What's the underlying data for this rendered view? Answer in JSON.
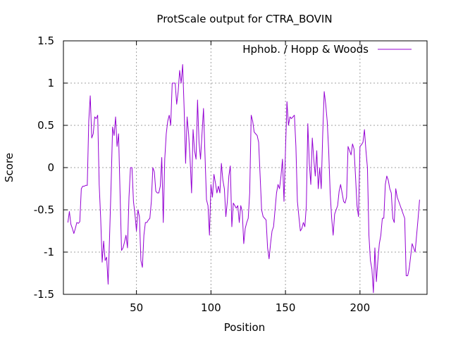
{
  "chart_data": {
    "type": "line",
    "title": "ProtScale output for CTRA_BOVIN",
    "xlabel": "Position",
    "ylabel": "Score",
    "xlim": [
      1,
      245
    ],
    "ylim": [
      -1.5,
      1.5
    ],
    "xticks": [
      50,
      100,
      150,
      200
    ],
    "xtick_labels": [
      "50",
      "100",
      "150",
      "200"
    ],
    "yticks": [
      -1.5,
      -1,
      -0.5,
      0,
      0.5,
      1,
      1.5
    ],
    "ytick_labels": [
      "-1.5",
      "-1",
      "-0.5",
      "0",
      "0.5",
      "1",
      "1.5"
    ],
    "grid": true,
    "legend_position": "top-right",
    "series": [
      {
        "name": "Hphob. / Hopp & Woods",
        "color": "#9400d3",
        "points": [
          [
            4,
            -0.65
          ],
          [
            5,
            -0.52
          ],
          [
            6,
            -0.67
          ],
          [
            7,
            -0.72
          ],
          [
            8,
            -0.78
          ],
          [
            9,
            -0.72
          ],
          [
            10,
            -0.65
          ],
          [
            11,
            -0.66
          ],
          [
            12,
            -0.64
          ],
          [
            13,
            -0.25
          ],
          [
            14,
            -0.22
          ],
          [
            15,
            -0.22
          ],
          [
            16,
            -0.21
          ],
          [
            17,
            -0.21
          ],
          [
            18,
            0.55
          ],
          [
            19,
            0.85
          ],
          [
            20,
            0.35
          ],
          [
            21,
            0.4
          ],
          [
            22,
            0.6
          ],
          [
            23,
            0.58
          ],
          [
            24,
            0.62
          ],
          [
            25,
            -0.2
          ],
          [
            26,
            -0.6
          ],
          [
            27,
            -1.12
          ],
          [
            28,
            -0.87
          ],
          [
            29,
            -1.1
          ],
          [
            30,
            -1.06
          ],
          [
            31,
            -1.38
          ],
          [
            32,
            -0.8
          ],
          [
            33,
            -0.2
          ],
          [
            34,
            0.48
          ],
          [
            35,
            0.38
          ],
          [
            36,
            0.6
          ],
          [
            37,
            0.25
          ],
          [
            38,
            0.4
          ],
          [
            39,
            -0.3
          ],
          [
            40,
            -0.98
          ],
          [
            41,
            -0.95
          ],
          [
            42,
            -0.88
          ],
          [
            43,
            -0.8
          ],
          [
            44,
            -0.95
          ],
          [
            45,
            -0.35
          ],
          [
            46,
            0.0
          ],
          [
            47,
            0.0
          ],
          [
            48,
            -0.4
          ],
          [
            49,
            -0.55
          ],
          [
            50,
            -0.75
          ],
          [
            51,
            -0.5
          ],
          [
            52,
            -0.58
          ],
          [
            53,
            -1.1
          ],
          [
            54,
            -1.18
          ],
          [
            55,
            -0.8
          ],
          [
            56,
            -0.65
          ],
          [
            57,
            -0.65
          ],
          [
            58,
            -0.62
          ],
          [
            59,
            -0.6
          ],
          [
            60,
            -0.4
          ],
          [
            61,
            0.0
          ],
          [
            62,
            -0.05
          ],
          [
            63,
            -0.28
          ],
          [
            64,
            -0.3
          ],
          [
            65,
            -0.3
          ],
          [
            66,
            -0.22
          ],
          [
            67,
            0.12
          ],
          [
            68,
            -0.65
          ],
          [
            69,
            0.1
          ],
          [
            70,
            0.4
          ],
          [
            71,
            0.55
          ],
          [
            72,
            0.62
          ],
          [
            73,
            0.5
          ],
          [
            74,
            1.0
          ],
          [
            75,
            1.0
          ],
          [
            76,
            1.0
          ],
          [
            77,
            0.75
          ],
          [
            78,
            0.9
          ],
          [
            79,
            1.15
          ],
          [
            80,
            1.0
          ],
          [
            81,
            1.22
          ],
          [
            82,
            0.7
          ],
          [
            83,
            0.05
          ],
          [
            84,
            0.6
          ],
          [
            85,
            0.4
          ],
          [
            86,
            0.1
          ],
          [
            87,
            -0.3
          ],
          [
            88,
            0.45
          ],
          [
            89,
            0.2
          ],
          [
            90,
            0.1
          ],
          [
            91,
            0.8
          ],
          [
            92,
            0.3
          ],
          [
            93,
            0.1
          ],
          [
            94,
            0.4
          ],
          [
            95,
            0.7
          ],
          [
            96,
            0.15
          ],
          [
            97,
            -0.38
          ],
          [
            98,
            -0.45
          ],
          [
            99,
            -0.8
          ],
          [
            100,
            -0.2
          ],
          [
            101,
            -0.35
          ],
          [
            102,
            -0.08
          ],
          [
            103,
            -0.18
          ],
          [
            104,
            -0.3
          ],
          [
            105,
            -0.22
          ],
          [
            106,
            -0.3
          ],
          [
            107,
            0.05
          ],
          [
            108,
            -0.15
          ],
          [
            109,
            -0.25
          ],
          [
            110,
            -0.58
          ],
          [
            111,
            -0.4
          ],
          [
            112,
            -0.1
          ],
          [
            113,
            0.02
          ],
          [
            114,
            -0.7
          ],
          [
            115,
            -0.42
          ],
          [
            116,
            -0.45
          ],
          [
            117,
            -0.48
          ],
          [
            118,
            -0.45
          ],
          [
            119,
            -0.65
          ],
          [
            120,
            -0.45
          ],
          [
            121,
            -0.52
          ],
          [
            122,
            -0.9
          ],
          [
            123,
            -0.72
          ],
          [
            124,
            -0.65
          ],
          [
            125,
            -0.6
          ],
          [
            126,
            -0.3
          ],
          [
            127,
            0.62
          ],
          [
            128,
            0.55
          ],
          [
            129,
            0.42
          ],
          [
            130,
            0.4
          ],
          [
            131,
            0.38
          ],
          [
            132,
            0.3
          ],
          [
            133,
            -0.1
          ],
          [
            134,
            -0.5
          ],
          [
            135,
            -0.58
          ],
          [
            136,
            -0.6
          ],
          [
            137,
            -0.62
          ],
          [
            138,
            -0.95
          ],
          [
            139,
            -1.08
          ],
          [
            140,
            -0.9
          ],
          [
            141,
            -0.75
          ],
          [
            142,
            -0.7
          ],
          [
            143,
            -0.5
          ],
          [
            144,
            -0.3
          ],
          [
            145,
            -0.2
          ],
          [
            146,
            -0.25
          ],
          [
            147,
            -0.1
          ],
          [
            148,
            0.1
          ],
          [
            149,
            -0.4
          ],
          [
            150,
            0.2
          ],
          [
            151,
            0.78
          ],
          [
            152,
            0.5
          ],
          [
            153,
            0.6
          ],
          [
            154,
            0.58
          ],
          [
            155,
            0.6
          ],
          [
            156,
            0.62
          ],
          [
            157,
            0.25
          ],
          [
            158,
            -0.4
          ],
          [
            159,
            -0.58
          ],
          [
            160,
            -0.75
          ],
          [
            161,
            -0.72
          ],
          [
            162,
            -0.65
          ],
          [
            163,
            -0.7
          ],
          [
            164,
            -0.45
          ],
          [
            165,
            0.52
          ],
          [
            166,
            0.05
          ],
          [
            167,
            -0.2
          ],
          [
            168,
            0.35
          ],
          [
            169,
            0.1
          ],
          [
            170,
            -0.1
          ],
          [
            171,
            0.2
          ],
          [
            172,
            -0.25
          ],
          [
            173,
            0.0
          ],
          [
            174,
            -0.25
          ],
          [
            175,
            0.4
          ],
          [
            176,
            0.9
          ],
          [
            177,
            0.75
          ],
          [
            178,
            0.55
          ],
          [
            179,
            0.2
          ],
          [
            180,
            -0.3
          ],
          [
            181,
            -0.6
          ],
          [
            182,
            -0.8
          ],
          [
            183,
            -0.55
          ],
          [
            184,
            -0.5
          ],
          [
            185,
            -0.45
          ],
          [
            186,
            -0.28
          ],
          [
            187,
            -0.2
          ],
          [
            188,
            -0.3
          ],
          [
            189,
            -0.4
          ],
          [
            190,
            -0.42
          ],
          [
            191,
            -0.35
          ],
          [
            192,
            0.25
          ],
          [
            193,
            0.2
          ],
          [
            194,
            0.15
          ],
          [
            195,
            0.28
          ],
          [
            196,
            0.22
          ],
          [
            197,
            -0.1
          ],
          [
            198,
            -0.45
          ],
          [
            199,
            -0.58
          ],
          [
            200,
            0.25
          ],
          [
            201,
            0.27
          ],
          [
            202,
            0.3
          ],
          [
            203,
            0.45
          ],
          [
            204,
            0.2
          ],
          [
            205,
            0.0
          ],
          [
            206,
            -0.8
          ],
          [
            207,
            -1.1
          ],
          [
            208,
            -1.2
          ],
          [
            209,
            -1.48
          ],
          [
            210,
            -0.95
          ],
          [
            211,
            -1.35
          ],
          [
            212,
            -1.1
          ],
          [
            213,
            -0.9
          ],
          [
            214,
            -0.8
          ],
          [
            215,
            -0.6
          ],
          [
            216,
            -0.6
          ],
          [
            217,
            -0.2
          ],
          [
            218,
            -0.1
          ],
          [
            219,
            -0.15
          ],
          [
            220,
            -0.25
          ],
          [
            221,
            -0.3
          ],
          [
            222,
            -0.6
          ],
          [
            223,
            -0.65
          ],
          [
            224,
            -0.25
          ],
          [
            225,
            -0.35
          ],
          [
            226,
            -0.4
          ],
          [
            227,
            -0.45
          ],
          [
            228,
            -0.5
          ],
          [
            229,
            -0.55
          ],
          [
            230,
            -0.6
          ],
          [
            231,
            -1.28
          ],
          [
            232,
            -1.28
          ],
          [
            233,
            -1.2
          ],
          [
            234,
            -1.05
          ],
          [
            235,
            -0.9
          ],
          [
            236,
            -0.95
          ],
          [
            237,
            -1.0
          ],
          [
            238,
            -0.8
          ],
          [
            239,
            -0.6
          ],
          [
            240,
            -0.38
          ]
        ]
      }
    ]
  }
}
